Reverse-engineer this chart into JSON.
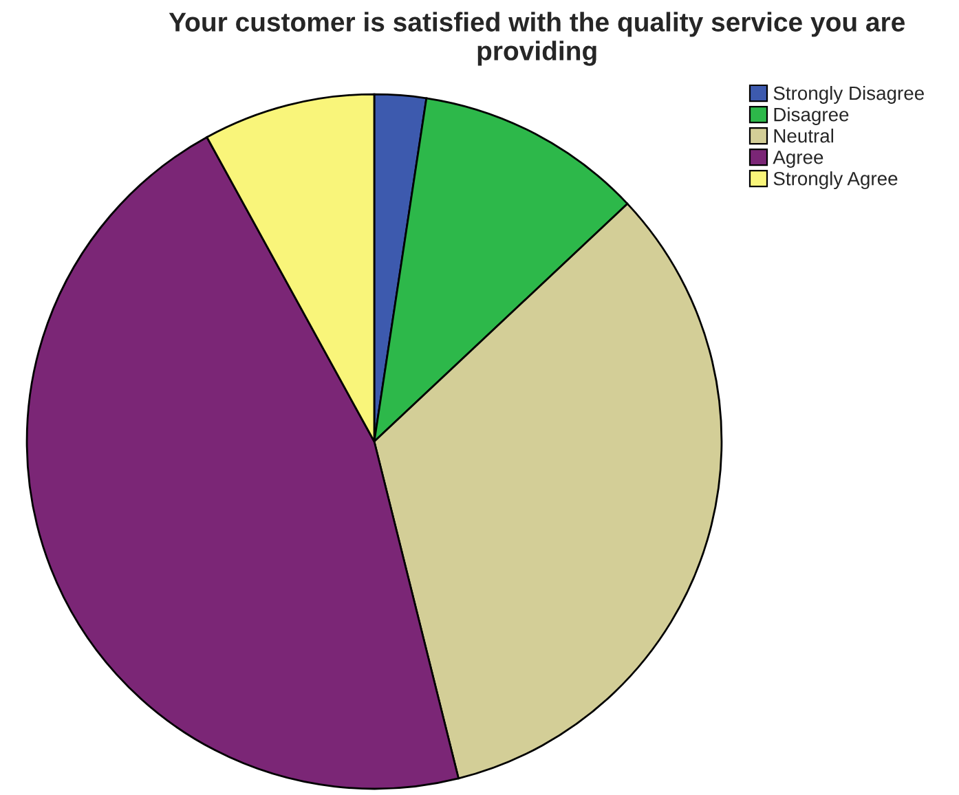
{
  "chart_data": {
    "type": "pie",
    "title": "Your customer is satisfied with the quality service you are providing",
    "categories": [
      "Strongly Disagree",
      "Disagree",
      "Neutral",
      "Agree",
      "Strongly Agree"
    ],
    "values": [
      2.4,
      10.6,
      33.1,
      45.9,
      8.0
    ],
    "colors": [
      "#3d5aae",
      "#2db84a",
      "#d3ce97",
      "#7b2676",
      "#f9f57a"
    ],
    "legend": "top right"
  }
}
